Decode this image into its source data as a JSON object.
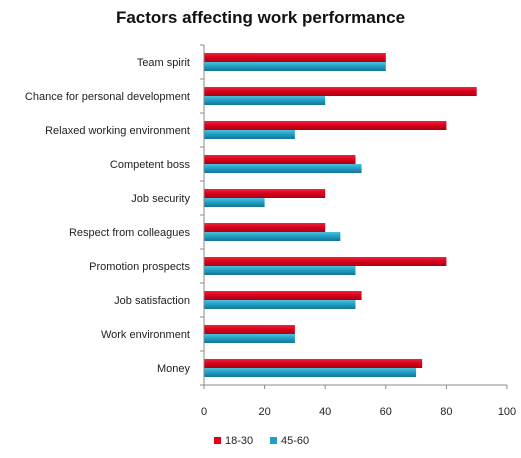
{
  "chart_data": {
    "type": "bar",
    "orientation": "horizontal",
    "title": "Factors affecting work performance",
    "xlabel": "",
    "ylabel": "",
    "categories": [
      "Team spirit",
      "Chance for personal development",
      "Relaxed working environment",
      "Competent boss",
      "Job security",
      "Respect from colleagues",
      "Promotion prospects",
      "Job satisfaction",
      "Work environment",
      "Money"
    ],
    "series": [
      {
        "name": "18-30",
        "color": "#e2001a",
        "values": [
          60,
          90,
          80,
          50,
          40,
          40,
          80,
          52,
          30,
          72
        ]
      },
      {
        "name": "45-60",
        "color": "#1fa1c6",
        "values": [
          60,
          40,
          30,
          52,
          20,
          45,
          50,
          50,
          30,
          70
        ]
      }
    ],
    "xlim": [
      0,
      100
    ],
    "xticks": [
      "0",
      "20",
      "40",
      "60",
      "80",
      "100"
    ],
    "grid": false,
    "legend_position": "bottom"
  }
}
